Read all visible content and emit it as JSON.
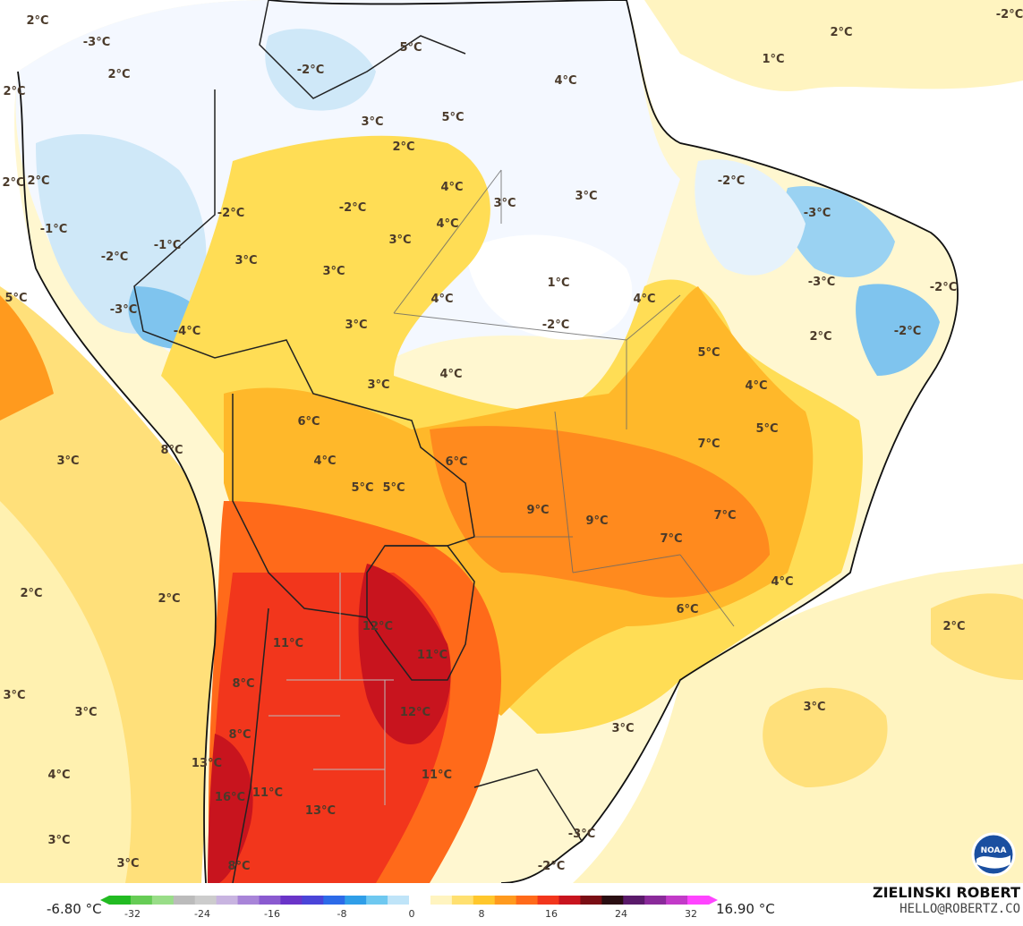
{
  "map": {
    "labels": [
      {
        "text": "2°C"
      },
      {
        "text": "-3°C"
      },
      {
        "text": "2°C"
      },
      {
        "text": "2°C"
      },
      {
        "text": "-2°C"
      },
      {
        "text": "5°C"
      },
      {
        "text": "-2°C"
      },
      {
        "text": "4°C"
      },
      {
        "text": "2°C"
      },
      {
        "text": "1°C"
      },
      {
        "text": "2°C"
      },
      {
        "text": "3°C"
      },
      {
        "text": "5°C"
      },
      {
        "text": "2°C"
      },
      {
        "text": "2°C"
      },
      {
        "text": "4°C"
      },
      {
        "text": "3°C"
      },
      {
        "text": "3°C"
      },
      {
        "text": "-2°C"
      },
      {
        "text": "-3°C"
      },
      {
        "text": "-1°C"
      },
      {
        "text": "-2°C"
      },
      {
        "text": "-2°C"
      },
      {
        "text": "4°C"
      },
      {
        "text": "3°C"
      },
      {
        "text": "-1°C"
      },
      {
        "text": "-2°C"
      },
      {
        "text": "3°C"
      },
      {
        "text": "3°C"
      },
      {
        "text": "5°C"
      },
      {
        "text": "1°C"
      },
      {
        "text": "-3°C"
      },
      {
        "text": "4°C"
      },
      {
        "text": "-2°C"
      },
      {
        "text": "-3°C"
      },
      {
        "text": "-4°C"
      },
      {
        "text": "3°C"
      },
      {
        "text": "-2°C"
      },
      {
        "text": "2°C"
      },
      {
        "text": "-2°C"
      },
      {
        "text": "5°C"
      },
      {
        "text": "4°C"
      },
      {
        "text": "4°C"
      },
      {
        "text": "3°C"
      },
      {
        "text": "4°C"
      },
      {
        "text": "6°C"
      },
      {
        "text": "5°C"
      },
      {
        "text": "7°C"
      },
      {
        "text": "8°C"
      },
      {
        "text": "3°C"
      },
      {
        "text": "4°C"
      },
      {
        "text": "6°C"
      },
      {
        "text": "5°C"
      },
      {
        "text": "5°C"
      },
      {
        "text": "9°C"
      },
      {
        "text": "9°C"
      },
      {
        "text": "7°C"
      },
      {
        "text": "7°C"
      },
      {
        "text": "2°C"
      },
      {
        "text": "2°C"
      },
      {
        "text": "4°C"
      },
      {
        "text": "12°C"
      },
      {
        "text": "6°C"
      },
      {
        "text": "2°C"
      },
      {
        "text": "11°C"
      },
      {
        "text": "11°C"
      },
      {
        "text": "3°C"
      },
      {
        "text": "8°C"
      },
      {
        "text": "3°C"
      },
      {
        "text": "12°C"
      },
      {
        "text": "3°C"
      },
      {
        "text": "3°C"
      },
      {
        "text": "8°C"
      },
      {
        "text": "13°C"
      },
      {
        "text": "4°C"
      },
      {
        "text": "11°C"
      },
      {
        "text": "16°C"
      },
      {
        "text": "11°C"
      },
      {
        "text": "13°C"
      },
      {
        "text": "3°C"
      },
      {
        "text": "-3°C"
      },
      {
        "text": "3°C"
      },
      {
        "text": "8°C"
      },
      {
        "text": "-2°C"
      }
    ]
  },
  "legend": {
    "min_label": "-6.80 °C",
    "max_label": "16.90 °C",
    "ticks": [
      "-32",
      "-24",
      "-16",
      "-8",
      "0",
      "8",
      "16",
      "24",
      "32"
    ],
    "colors": [
      "#22bb22",
      "#66cc55",
      "#99dd88",
      "#bbbbbb",
      "#cccccc",
      "#c8b4e0",
      "#a884d8",
      "#8a5ad0",
      "#6a34c8",
      "#4a44d8",
      "#2c6ae8",
      "#2f9ee8",
      "#6ec8f0",
      "#bfe4f8",
      "#ffffff",
      "#fff4c0",
      "#ffe070",
      "#ffc72c",
      "#ff9a1e",
      "#ff6a1a",
      "#f2361c",
      "#c8141e",
      "#7a0e14",
      "#2a0e12",
      "#5a1a6a",
      "#8a2a9a",
      "#c23ac8",
      "#ff44ff"
    ]
  },
  "credit": {
    "author": "ZIELINSKI ROBERT",
    "contact": "HELLO@ROBERTZ.CO"
  },
  "logo": {
    "text": "NOAA",
    "icon": "noaa-logo-icon"
  }
}
